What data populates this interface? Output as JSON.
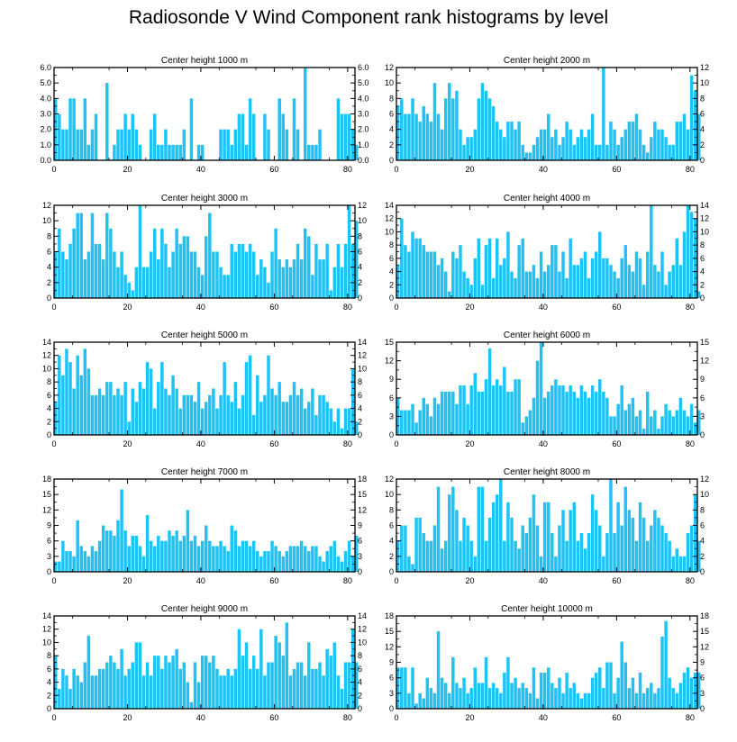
{
  "title": "Radiosonde V Wind Component rank histograms by level",
  "bar_color": "#1ec3f5",
  "chart_data": [
    {
      "type": "bar",
      "title": "Center height 1000 m",
      "xlim": [
        0,
        82
      ],
      "ylim": [
        0,
        6
      ],
      "yticks": [
        "0.0",
        "1.0",
        "2.0",
        "3.0",
        "4.0",
        "5.0",
        "6.0"
      ],
      "xticks": [
        "0",
        "20",
        "40",
        "60",
        "80"
      ],
      "values": [
        4,
        3,
        2,
        2,
        4,
        4,
        2,
        2,
        4,
        1,
        2,
        3,
        0,
        0,
        5,
        0,
        1,
        2,
        2,
        3,
        2,
        3,
        2,
        1,
        0,
        0,
        2,
        3,
        1,
        1,
        2,
        1,
        1,
        1,
        1,
        2,
        0,
        4,
        0,
        1,
        1,
        0,
        0,
        0,
        0,
        2,
        2,
        2,
        1,
        2,
        3,
        3,
        1,
        4,
        3,
        0,
        0,
        3,
        2,
        0,
        0,
        4,
        3,
        2,
        0,
        4,
        2,
        0,
        6,
        1,
        1,
        1,
        2,
        0,
        0,
        0,
        0,
        4,
        3,
        3,
        3,
        2,
        1
      ]
    },
    {
      "type": "bar",
      "title": "Center height 2000 m",
      "xlim": [
        0,
        82
      ],
      "ylim": [
        0,
        12
      ],
      "yticks": [
        "0",
        "2",
        "4",
        "6",
        "8",
        "10",
        "12"
      ],
      "xticks": [
        "0",
        "20",
        "40",
        "60",
        "80"
      ],
      "values": [
        7,
        8,
        6,
        6,
        8,
        6,
        5,
        7,
        6,
        5,
        10,
        6,
        4,
        8,
        10,
        8,
        9,
        4,
        2,
        3,
        3,
        4,
        8,
        10,
        9,
        8,
        7,
        5,
        4,
        3,
        5,
        5,
        4,
        5,
        2,
        1,
        1,
        2,
        3,
        4,
        4,
        6,
        3,
        4,
        2,
        3,
        5,
        4,
        2,
        3,
        4,
        3,
        4,
        6,
        2,
        2,
        12,
        2,
        5,
        4,
        2,
        3,
        4,
        5,
        5,
        6,
        4,
        2,
        1,
        3,
        5,
        4,
        4,
        3,
        2,
        2,
        5,
        5,
        6,
        4,
        11,
        9,
        6
      ]
    },
    {
      "type": "bar",
      "title": "Center height 3000 m",
      "xlim": [
        0,
        82
      ],
      "ylim": [
        0,
        12
      ],
      "yticks": [
        "0",
        "2",
        "4",
        "6",
        "8",
        "10",
        "12"
      ],
      "xticks": [
        "0",
        "20",
        "40",
        "60",
        "80"
      ],
      "values": [
        6,
        9,
        6,
        5,
        7,
        9,
        11,
        11,
        5,
        6,
        11,
        7,
        7,
        5,
        11,
        9,
        6,
        4,
        6,
        3,
        2,
        1,
        4,
        12,
        4,
        4,
        6,
        9,
        5,
        9,
        7,
        4,
        6,
        9,
        7,
        8,
        8,
        6,
        6,
        4,
        3,
        8,
        11,
        6,
        6,
        4,
        3,
        3,
        7,
        6,
        7,
        7,
        6,
        7,
        6,
        3,
        5,
        4,
        2,
        6,
        9,
        5,
        4,
        5,
        4,
        5,
        7,
        5,
        9,
        8,
        3,
        7,
        5,
        5,
        7,
        1,
        4,
        7,
        4,
        7,
        12,
        7,
        10
      ]
    },
    {
      "type": "bar",
      "title": "Center height 4000 m",
      "xlim": [
        0,
        82
      ],
      "ylim": [
        0,
        14
      ],
      "yticks": [
        "0",
        "2",
        "4",
        "6",
        "8",
        "10",
        "12",
        "14"
      ],
      "xticks": [
        "0",
        "20",
        "40",
        "60",
        "80"
      ],
      "values": [
        5,
        12,
        8,
        7,
        10,
        9,
        9,
        8,
        7,
        7,
        7,
        5,
        6,
        4,
        1,
        7,
        6,
        8,
        4,
        3,
        2,
        6,
        9,
        2,
        8,
        9,
        3,
        9,
        5,
        6,
        10,
        4,
        3,
        8,
        9,
        4,
        4,
        5,
        3,
        7,
        4,
        5,
        8,
        8,
        4,
        7,
        3,
        9,
        5,
        5,
        6,
        7,
        3,
        6,
        7,
        10,
        6,
        6,
        5,
        4,
        3,
        6,
        8,
        5,
        4,
        7,
        6,
        2,
        7,
        14,
        5,
        4,
        7,
        2,
        4,
        5,
        9,
        5,
        10,
        14,
        13,
        12,
        1
      ]
    },
    {
      "type": "bar",
      "title": "Center height 5000 m",
      "xlim": [
        0,
        82
      ],
      "ylim": [
        0,
        14
      ],
      "yticks": [
        "0",
        "2",
        "4",
        "6",
        "8",
        "10",
        "12",
        "14"
      ],
      "xticks": [
        "0",
        "20",
        "40",
        "60",
        "80"
      ],
      "values": [
        5,
        12,
        9,
        13,
        11,
        7,
        12,
        9,
        13,
        10,
        6,
        6,
        7,
        6,
        8,
        8,
        6,
        7,
        6,
        8,
        2,
        7,
        5,
        8,
        7,
        11,
        10,
        4,
        8,
        11,
        7,
        6,
        9,
        7,
        4,
        6,
        6,
        6,
        5,
        8,
        4,
        5,
        6,
        7,
        4,
        6,
        11,
        6,
        5,
        8,
        4,
        6,
        11,
        12,
        3,
        9,
        5,
        6,
        12,
        7,
        6,
        8,
        5,
        5,
        6,
        8,
        6,
        7,
        4,
        5,
        7,
        3,
        6,
        6,
        5,
        4,
        2,
        4,
        1,
        4,
        4,
        10,
        2
      ]
    },
    {
      "type": "bar",
      "title": "Center height 6000 m",
      "xlim": [
        0,
        82
      ],
      "ylim": [
        0,
        15
      ],
      "yticks": [
        "0",
        "3",
        "6",
        "9",
        "12",
        "15"
      ],
      "xticks": [
        "0",
        "20",
        "40",
        "60",
        "80"
      ],
      "values": [
        6,
        4,
        4,
        4,
        5,
        2,
        4,
        6,
        5,
        3,
        6,
        5,
        7,
        7,
        7,
        7,
        5,
        8,
        8,
        5,
        8,
        10,
        7,
        7,
        9,
        14,
        8,
        9,
        8,
        11,
        7,
        7,
        9,
        9,
        2,
        3,
        4,
        6,
        12,
        15,
        6,
        7,
        8,
        9,
        8,
        8,
        7,
        8,
        7,
        6,
        8,
        7,
        6,
        8,
        7,
        9,
        7,
        6,
        3,
        3,
        5,
        8,
        4,
        5,
        6,
        3,
        4,
        1,
        7,
        3,
        4,
        1,
        3,
        5,
        4,
        3,
        4,
        6,
        4,
        3,
        5,
        2,
        4
      ]
    },
    {
      "type": "bar",
      "title": "Center height 7000 m",
      "xlim": [
        0,
        82
      ],
      "ylim": [
        0,
        18
      ],
      "yticks": [
        "0",
        "3",
        "6",
        "9",
        "12",
        "15",
        "18"
      ],
      "xticks": [
        "0",
        "20",
        "40",
        "60",
        "80"
      ],
      "values": [
        2,
        2,
        6,
        4,
        4,
        3,
        10,
        5,
        4,
        3,
        5,
        4,
        6,
        9,
        8,
        8,
        7,
        10,
        16,
        8,
        5,
        7,
        7,
        5,
        3,
        11,
        6,
        5,
        7,
        6,
        6,
        8,
        7,
        8,
        6,
        7,
        12,
        6,
        7,
        5,
        6,
        9,
        6,
        5,
        5,
        6,
        5,
        4,
        9,
        8,
        5,
        6,
        6,
        5,
        6,
        4,
        3,
        4,
        4,
        6,
        5,
        4,
        3,
        4,
        5,
        5,
        5,
        6,
        5,
        4,
        5,
        5,
        3,
        2,
        4,
        5,
        6,
        3,
        2,
        4,
        6,
        3,
        7
      ]
    },
    {
      "type": "bar",
      "title": "Center height 8000 m",
      "xlim": [
        0,
        82
      ],
      "ylim": [
        0,
        12
      ],
      "yticks": [
        "0",
        "2",
        "4",
        "6",
        "8",
        "10",
        "12"
      ],
      "xticks": [
        "0",
        "20",
        "40",
        "60",
        "80"
      ],
      "values": [
        4,
        6,
        6,
        2,
        1,
        7,
        7,
        5,
        4,
        4,
        6,
        11,
        3,
        4,
        10,
        11,
        8,
        4,
        7,
        6,
        4,
        2,
        11,
        11,
        4,
        7,
        9,
        10,
        12,
        4,
        9,
        7,
        4,
        3,
        6,
        5,
        7,
        10,
        6,
        2,
        9,
        9,
        5,
        2,
        6,
        8,
        4,
        8,
        9,
        4,
        5,
        3,
        5,
        10,
        8,
        6,
        2,
        5,
        12,
        5,
        9,
        6,
        11,
        8,
        7,
        4,
        9,
        7,
        4,
        6,
        8,
        7,
        6,
        5,
        4,
        2,
        3,
        2,
        2,
        5,
        6,
        10,
        4
      ]
    },
    {
      "type": "bar",
      "title": "Center height 9000 m",
      "xlim": [
        0,
        82
      ],
      "ylim": [
        0,
        14
      ],
      "yticks": [
        "0",
        "2",
        "4",
        "6",
        "8",
        "10",
        "12",
        "14"
      ],
      "xticks": [
        "0",
        "20",
        "40",
        "60",
        "80"
      ],
      "values": [
        8,
        3,
        6,
        5,
        3,
        6,
        5,
        4,
        7,
        11,
        5,
        5,
        6,
        6,
        7,
        8,
        7,
        6,
        9,
        5,
        6,
        7,
        10,
        10,
        5,
        7,
        5,
        8,
        8,
        6,
        8,
        7,
        8,
        9,
        6,
        7,
        4,
        1,
        7,
        4,
        8,
        8,
        7,
        8,
        6,
        5,
        5,
        6,
        5,
        6,
        12,
        8,
        10,
        6,
        8,
        6,
        12,
        5,
        7,
        7,
        11,
        10,
        8,
        13,
        5,
        6,
        7,
        7,
        5,
        10,
        6,
        6,
        7,
        5,
        9,
        8,
        10,
        5,
        3,
        7,
        7,
        12,
        7
      ]
    },
    {
      "type": "bar",
      "title": "Center height 10000 m",
      "xlim": [
        0,
        82
      ],
      "ylim": [
        0,
        18
      ],
      "yticks": [
        "0",
        "3",
        "6",
        "9",
        "12",
        "15",
        "18"
      ],
      "xticks": [
        "0",
        "20",
        "40",
        "60",
        "80"
      ],
      "values": [
        8,
        8,
        8,
        3,
        8,
        1,
        3,
        2,
        6,
        4,
        3,
        15,
        6,
        5,
        3,
        10,
        5,
        4,
        6,
        3,
        4,
        8,
        5,
        5,
        10,
        4,
        5,
        4,
        3,
        7,
        10,
        5,
        6,
        4,
        5,
        4,
        3,
        8,
        2,
        7,
        7,
        8,
        5,
        4,
        6,
        3,
        7,
        4,
        5,
        3,
        2,
        3,
        3,
        6,
        7,
        8,
        4,
        9,
        9,
        3,
        6,
        13,
        9,
        4,
        6,
        3,
        7,
        3,
        4,
        5,
        3,
        4,
        14,
        17,
        6,
        4,
        3,
        5,
        7,
        8,
        6,
        7,
        7
      ]
    }
  ]
}
